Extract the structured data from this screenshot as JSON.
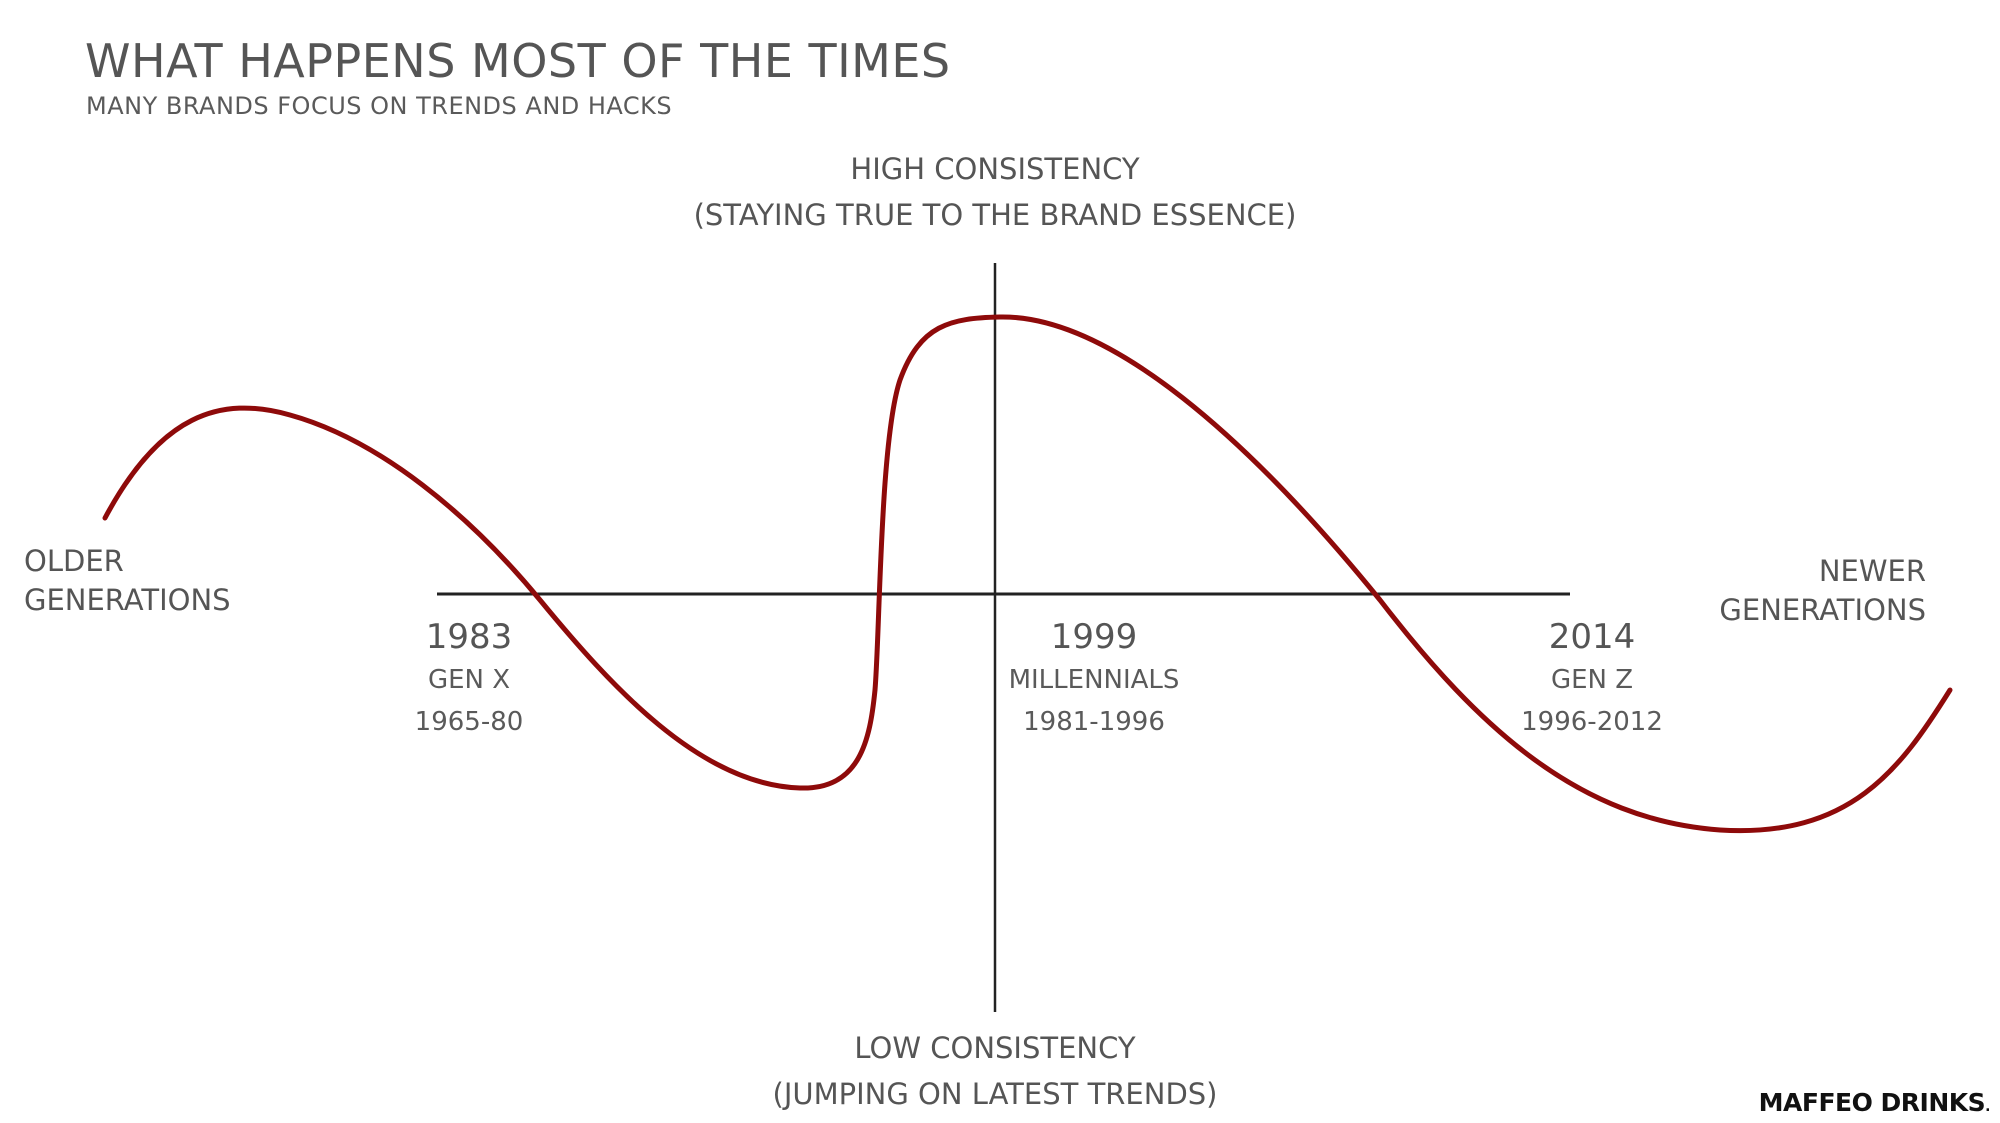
{
  "header": {
    "title": "WHAT HAPPENS MOST OF THE TIMES",
    "subtitle": "MANY BRANDS FOCUS ON TRENDS AND HACKS"
  },
  "axes": {
    "top_line1": "HIGH CONSISTENCY",
    "top_line2": "(STAYING TRUE TO THE BRAND ESSENCE)",
    "bottom_line1": "LOW CONSISTENCY",
    "bottom_line2": "(JUMPING ON LATEST TRENDS)",
    "left_line1": "OLDER",
    "left_line2": "GENERATIONS",
    "right_line1": "NEWER",
    "right_line2": "GENERATIONS"
  },
  "generations": [
    {
      "year": "1983",
      "name": "GEN X",
      "range": "1965-80"
    },
    {
      "year": "1999",
      "name": "MILLENNIALS",
      "range": "1981-1996"
    },
    {
      "year": "2014",
      "name": "GEN Z",
      "range": "1996-2012"
    }
  ],
  "brand": {
    "name": "MAFFEO DRINKS",
    "dot": "."
  },
  "colors": {
    "curve": "#8e0a0a",
    "axis": "#222222",
    "text": "#555555"
  }
}
